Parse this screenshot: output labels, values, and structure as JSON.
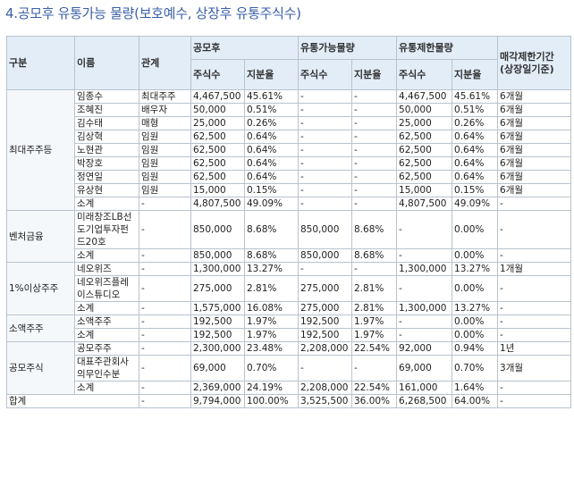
{
  "title": "4.공모후 유통가능 물량(보호예수, 상장후 유통주식수)",
  "headers": {
    "group": "구분",
    "name": "이름",
    "relation": "관계",
    "offering": "공모후",
    "tradable": "유통가능물량",
    "restricted": "유통제한물량",
    "lockup": "매각제한기간 (상장일기준)",
    "shares": "주식수",
    "ratio": "지분율"
  },
  "groups": [
    {
      "label": "최대주주등",
      "rows": [
        {
          "name": "임종수",
          "rel": "최대주주",
          "os": "4,467,500",
          "op": "45.61%",
          "ts": "-",
          "tp": "-",
          "rs": "4,467,500",
          "rp": "45.61%",
          "lk": "6개월"
        },
        {
          "name": "조혜진",
          "rel": "배우자",
          "os": "50,000",
          "op": "0.51%",
          "ts": "-",
          "tp": "-",
          "rs": "50,000",
          "rp": "0.51%",
          "lk": "6개월"
        },
        {
          "name": "김수태",
          "rel": "매형",
          "os": "25,000",
          "op": "0.26%",
          "ts": "-",
          "tp": "-",
          "rs": "25,000",
          "rp": "0.26%",
          "lk": "6개월"
        },
        {
          "name": "김상혁",
          "rel": "임원",
          "os": "62,500",
          "op": "0.64%",
          "ts": "-",
          "tp": "-",
          "rs": "62,500",
          "rp": "0.64%",
          "lk": "6개월"
        },
        {
          "name": "노현관",
          "rel": "임원",
          "os": "62,500",
          "op": "0.64%",
          "ts": "-",
          "tp": "-",
          "rs": "62,500",
          "rp": "0.64%",
          "lk": "6개월"
        },
        {
          "name": "박장호",
          "rel": "임원",
          "os": "62,500",
          "op": "0.64%",
          "ts": "-",
          "tp": "-",
          "rs": "62,500",
          "rp": "0.64%",
          "lk": "6개월"
        },
        {
          "name": "정연일",
          "rel": "임원",
          "os": "62,500",
          "op": "0.64%",
          "ts": "-",
          "tp": "-",
          "rs": "62,500",
          "rp": "0.64%",
          "lk": "6개월"
        },
        {
          "name": "유상현",
          "rel": "임원",
          "os": "15,000",
          "op": "0.15%",
          "ts": "-",
          "tp": "-",
          "rs": "15,000",
          "rp": "0.15%",
          "lk": "6개월"
        },
        {
          "name": "소계",
          "rel": "-",
          "os": "4,807,500",
          "op": "49.09%",
          "ts": "-",
          "tp": "-",
          "rs": "4,807,500",
          "rp": "49.09%",
          "lk": "-"
        }
      ]
    },
    {
      "label": "벤처금융",
      "rows": [
        {
          "name": "미래창조LB선도기업투자펀드20호",
          "rel": "-",
          "os": "850,000",
          "op": "8.68%",
          "ts": "850,000",
          "tp": "8.68%",
          "rs": "-",
          "rp": "0.00%",
          "lk": "-"
        },
        {
          "name": "소계",
          "rel": "-",
          "os": "850,000",
          "op": "8.68%",
          "ts": "850,000",
          "tp": "8.68%",
          "rs": "-",
          "rp": "0.00%",
          "lk": "-"
        }
      ]
    },
    {
      "label": "1%이상주주",
      "rows": [
        {
          "name": "네오위즈",
          "rel": "-",
          "os": "1,300,000",
          "op": "13.27%",
          "ts": "-",
          "tp": "-",
          "rs": "1,300,000",
          "rp": "13.27%",
          "lk": "1개월"
        },
        {
          "name": "네오위즈플레이스튜디오",
          "rel": "-",
          "os": "275,000",
          "op": "2.81%",
          "ts": "275,000",
          "tp": "2.81%",
          "rs": "-",
          "rp": "0.00%",
          "lk": "-"
        },
        {
          "name": "소계",
          "rel": "-",
          "os": "1,575,000",
          "op": "16.08%",
          "ts": "275,000",
          "tp": "2.81%",
          "rs": "1,300,000",
          "rp": "13.27%",
          "lk": "-"
        }
      ]
    },
    {
      "label": "소액주주",
      "rows": [
        {
          "name": "소액주주",
          "rel": "-",
          "os": "192,500",
          "op": "1.97%",
          "ts": "192,500",
          "tp": "1.97%",
          "rs": "-",
          "rp": "0.00%",
          "lk": "-"
        },
        {
          "name": "소계",
          "rel": "-",
          "os": "192,500",
          "op": "1.97%",
          "ts": "192,500",
          "tp": "1.97%",
          "rs": "-",
          "rp": "0.00%",
          "lk": "-"
        }
      ]
    },
    {
      "label": "공모주식",
      "rows": [
        {
          "name": "공모주주",
          "rel": "-",
          "os": "2,300,000",
          "op": "23.48%",
          "ts": "2,208,000",
          "tp": "22.54%",
          "rs": "92,000",
          "rp": "0.94%",
          "lk": "1년"
        },
        {
          "name": "대표주관회사의무인수분",
          "rel": "-",
          "os": "69,000",
          "op": "0.70%",
          "ts": "-",
          "tp": "-",
          "rs": "69,000",
          "rp": "0.70%",
          "lk": "3개월"
        },
        {
          "name": "소계",
          "rel": "-",
          "os": "2,369,000",
          "op": "24.19%",
          "ts": "2,208,000",
          "tp": "22.54%",
          "rs": "161,000",
          "rp": "1.64%",
          "lk": "-"
        }
      ]
    }
  ],
  "total": {
    "label": "합계",
    "name": "",
    "rel": "-",
    "os": "9,794,000",
    "op": "100.00%",
    "ts": "3,525,500",
    "tp": "36.00%",
    "rs": "6,268,500",
    "rp": "64.00%",
    "lk": "-"
  }
}
